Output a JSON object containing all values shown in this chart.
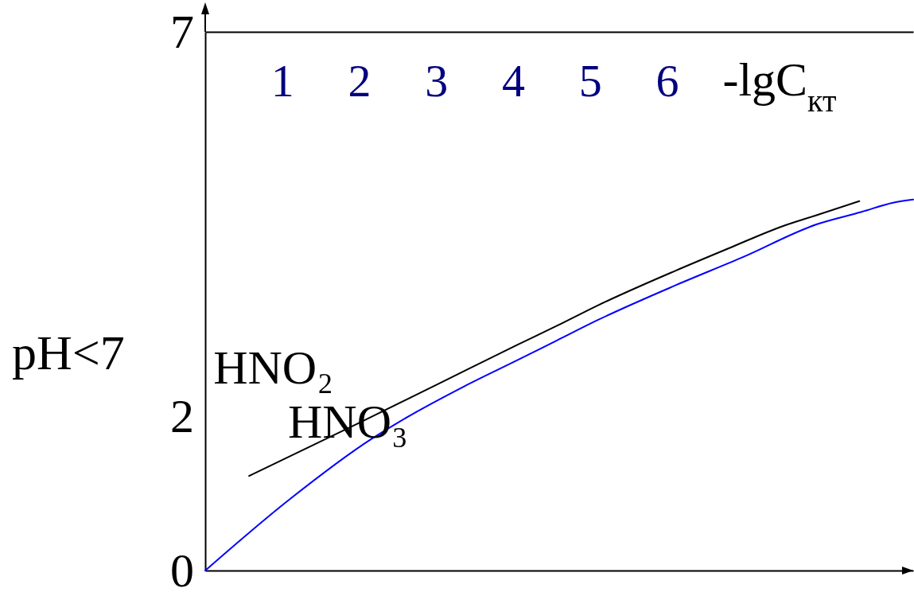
{
  "chart_data": {
    "type": "line",
    "xlabel": "-lgC$_{кт}$",
    "ylabel": "pH<7",
    "xlim": [
      0,
      9.2
    ],
    "ylim": [
      0,
      7
    ],
    "xticks": [
      1,
      2,
      3,
      4,
      5,
      6
    ],
    "yticks": [
      0,
      2,
      7
    ],
    "line_style": "solid",
    "series": [
      {
        "name": "HNO₂",
        "color": "#000000",
        "x": [
          0.57,
          1.98,
          3.02,
          4.05,
          4.57,
          5.09,
          6.12,
          6.81,
          7.49,
          7.95,
          8.5
        ],
        "values": [
          1.23,
          1.91,
          2.42,
          2.93,
          3.18,
          3.44,
          3.9,
          4.19,
          4.47,
          4.62,
          4.8
        ]
      },
      {
        "name": "HNO₃",
        "color": "#0000ff",
        "x": [
          0,
          1.09,
          2.16,
          2.5,
          3.36,
          4.05,
          4.57,
          5.09,
          6.12,
          6.98,
          7.95,
          8.53,
          8.94,
          9.2
        ],
        "values": [
          0,
          0.92,
          1.71,
          1.92,
          2.39,
          2.73,
          2.99,
          3.25,
          3.71,
          4.07,
          4.5,
          4.66,
          4.78,
          4.82
        ]
      }
    ]
  }
}
